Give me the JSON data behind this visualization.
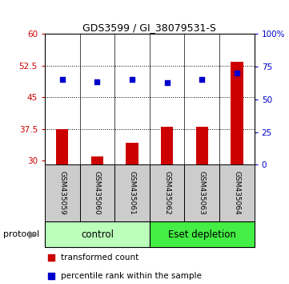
{
  "title": "GDS3599 / GI_38079531-S",
  "samples": [
    "GSM435059",
    "GSM435060",
    "GSM435061",
    "GSM435062",
    "GSM435063",
    "GSM435064"
  ],
  "red_values": [
    37.5,
    30.9,
    34.2,
    38.0,
    38.0,
    53.5
  ],
  "blue_values": [
    65.5,
    63.5,
    65.5,
    63.0,
    65.0,
    70.0
  ],
  "ylim_left": [
    29,
    60
  ],
  "ylim_right": [
    0,
    100
  ],
  "yticks_left": [
    30,
    37.5,
    45,
    52.5,
    60
  ],
  "yticks_right": [
    0,
    25,
    50,
    75,
    100
  ],
  "ytick_labels_left": [
    "30",
    "37.5",
    "45",
    "52.5",
    "60"
  ],
  "ytick_labels_right": [
    "0",
    "25",
    "50",
    "75",
    "100%"
  ],
  "hlines": [
    37.5,
    45,
    52.5
  ],
  "bar_color": "#cc0000",
  "dot_color": "#0000cc",
  "control_color": "#bbffbb",
  "eset_color": "#44ee44",
  "label_area_color": "#cccccc",
  "legend_red": "transformed count",
  "legend_blue": "percentile rank within the sample",
  "protocol_label": "protocol",
  "control_label": "control",
  "eset_label": "Eset depletion"
}
